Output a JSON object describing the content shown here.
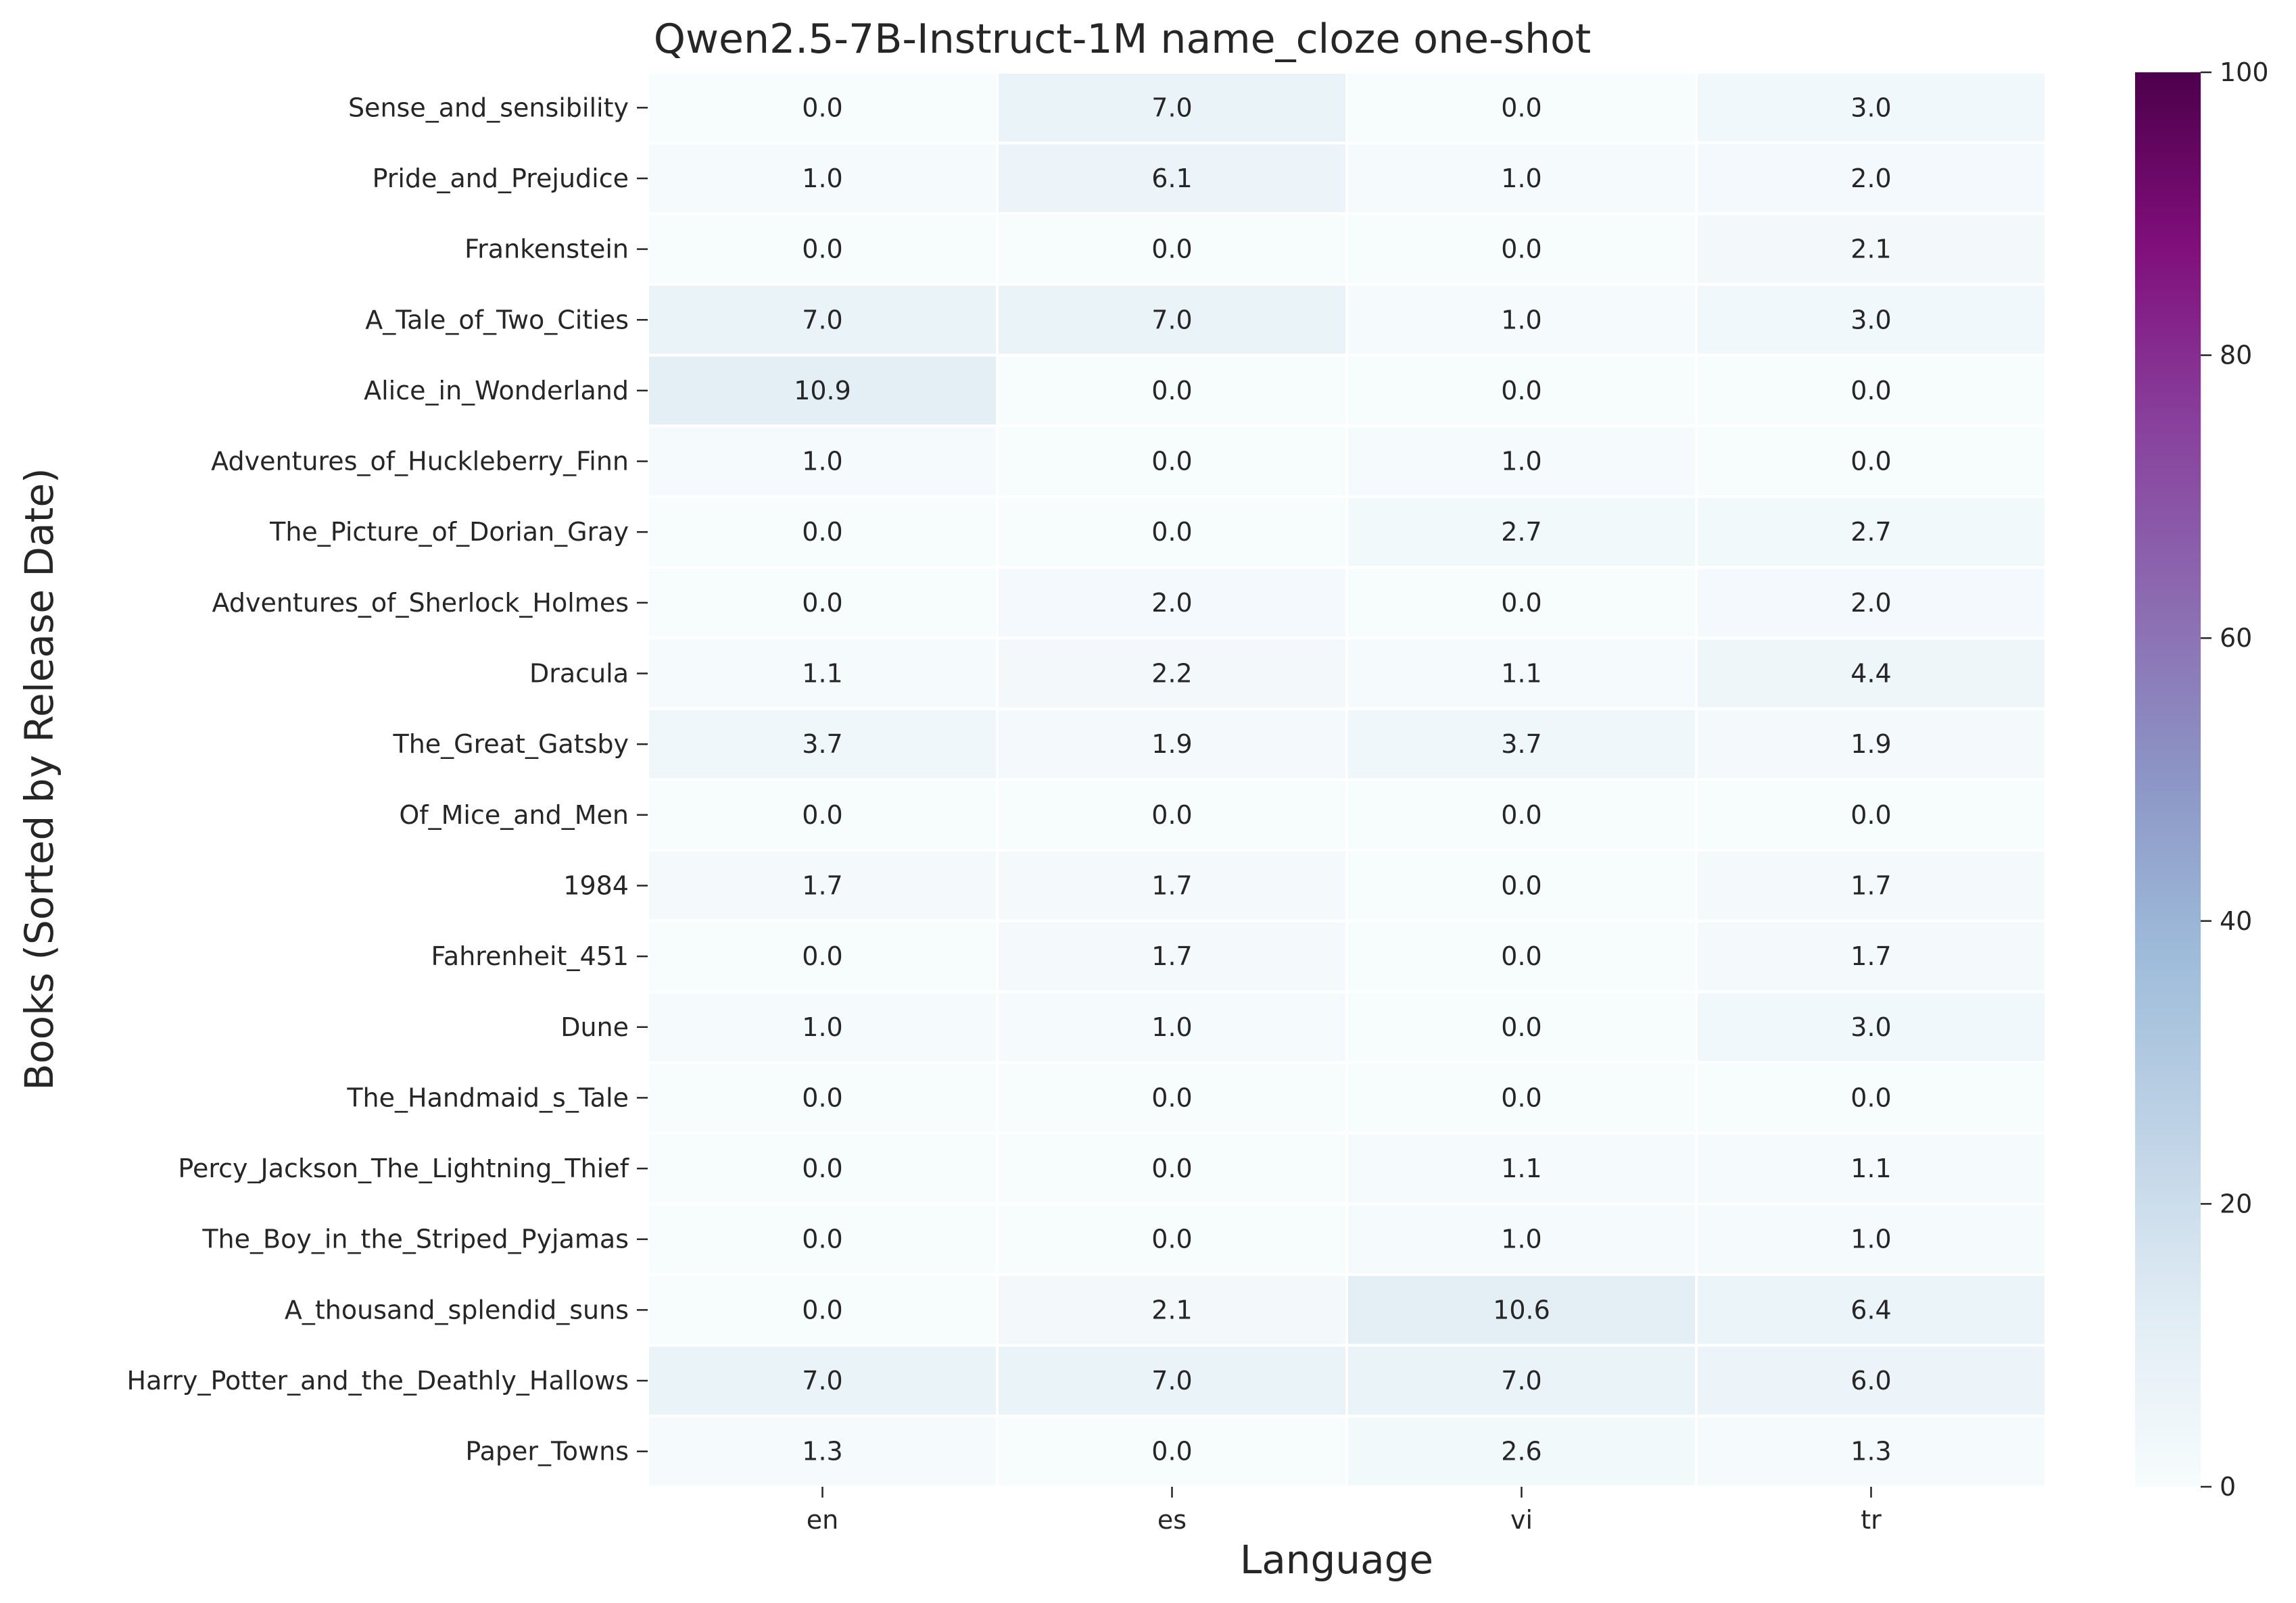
{
  "chart_data": {
    "type": "heatmap",
    "title": "Qwen2.5-7B-Instruct-1M name_cloze one-shot",
    "xlabel": "Language",
    "ylabel": "Books (Sorted by Release Date)",
    "columns": [
      "en",
      "es",
      "vi",
      "tr"
    ],
    "rows": [
      "Sense_and_sensibility",
      "Pride_and_Prejudice",
      "Frankenstein",
      "A_Tale_of_Two_Cities",
      "Alice_in_Wonderland",
      "Adventures_of_Huckleberry_Finn",
      "The_Picture_of_Dorian_Gray",
      "Adventures_of_Sherlock_Holmes",
      "Dracula",
      "The_Great_Gatsby",
      "Of_Mice_and_Men",
      "1984",
      "Fahrenheit_451",
      "Dune",
      "The_Handmaid_s_Tale",
      "Percy_Jackson_The_Lightning_Thief",
      "The_Boy_in_the_Striped_Pyjamas",
      "A_thousand_splendid_suns",
      "Harry_Potter_and_the_Deathly_Hallows",
      "Paper_Towns"
    ],
    "values": [
      [
        0.0,
        7.0,
        0.0,
        3.0
      ],
      [
        1.0,
        6.1,
        1.0,
        2.0
      ],
      [
        0.0,
        0.0,
        0.0,
        2.1
      ],
      [
        7.0,
        7.0,
        1.0,
        3.0
      ],
      [
        10.9,
        0.0,
        0.0,
        0.0
      ],
      [
        1.0,
        0.0,
        1.0,
        0.0
      ],
      [
        0.0,
        0.0,
        2.7,
        2.7
      ],
      [
        0.0,
        2.0,
        0.0,
        2.0
      ],
      [
        1.1,
        2.2,
        1.1,
        4.4
      ],
      [
        3.7,
        1.9,
        3.7,
        1.9
      ],
      [
        0.0,
        0.0,
        0.0,
        0.0
      ],
      [
        1.7,
        1.7,
        0.0,
        1.7
      ],
      [
        0.0,
        1.7,
        0.0,
        1.7
      ],
      [
        1.0,
        1.0,
        0.0,
        3.0
      ],
      [
        0.0,
        0.0,
        0.0,
        0.0
      ],
      [
        0.0,
        0.0,
        1.1,
        1.1
      ],
      [
        0.0,
        0.0,
        1.0,
        1.0
      ],
      [
        0.0,
        2.1,
        10.6,
        6.4
      ],
      [
        7.0,
        7.0,
        7.0,
        6.0
      ],
      [
        1.3,
        0.0,
        2.6,
        1.3
      ]
    ],
    "colormap": "BuPu",
    "vmin": 0,
    "vmax": 100,
    "colorbar_ticks": [
      0,
      20,
      40,
      60,
      80,
      100
    ],
    "annotation_format": "one decimal"
  }
}
